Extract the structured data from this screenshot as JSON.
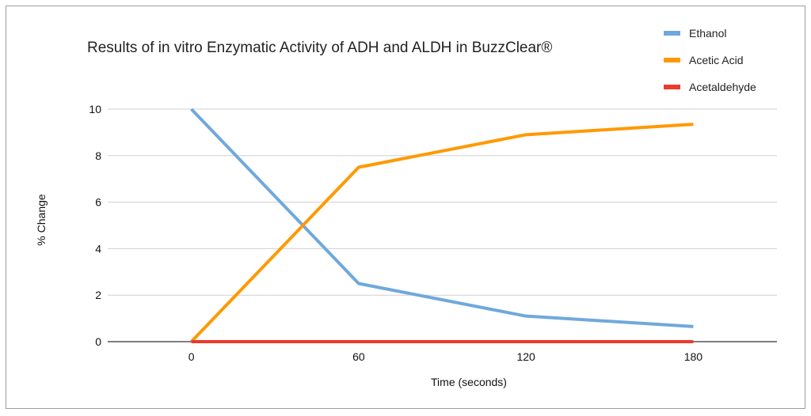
{
  "chart_data": {
    "type": "line",
    "title": "Results of in vitro Enzymatic Activity of ADH and ALDH in BuzzClear®",
    "xlabel": "Time (seconds)",
    "ylabel": "% Change",
    "x": [
      0,
      60,
      120,
      180
    ],
    "x_tick_labels": [
      "0",
      "60",
      "120",
      "180"
    ],
    "y_ticks": [
      0,
      2,
      4,
      6,
      8,
      10
    ],
    "y_tick_labels": [
      "0",
      "2",
      "4",
      "6",
      "8",
      "10"
    ],
    "ylim": [
      0,
      10
    ],
    "grid": true,
    "legend_position": "top-right",
    "series": [
      {
        "name": "Ethanol",
        "color": "#6fa8dc",
        "values": [
          10,
          2.5,
          1.1,
          0.65
        ]
      },
      {
        "name": "Acetic Acid",
        "color": "#ff9900",
        "values": [
          0,
          7.5,
          8.9,
          9.35
        ]
      },
      {
        "name": "Acetaldehyde",
        "color": "#ea3b2e",
        "values": [
          0,
          0,
          0,
          0
        ]
      }
    ]
  }
}
